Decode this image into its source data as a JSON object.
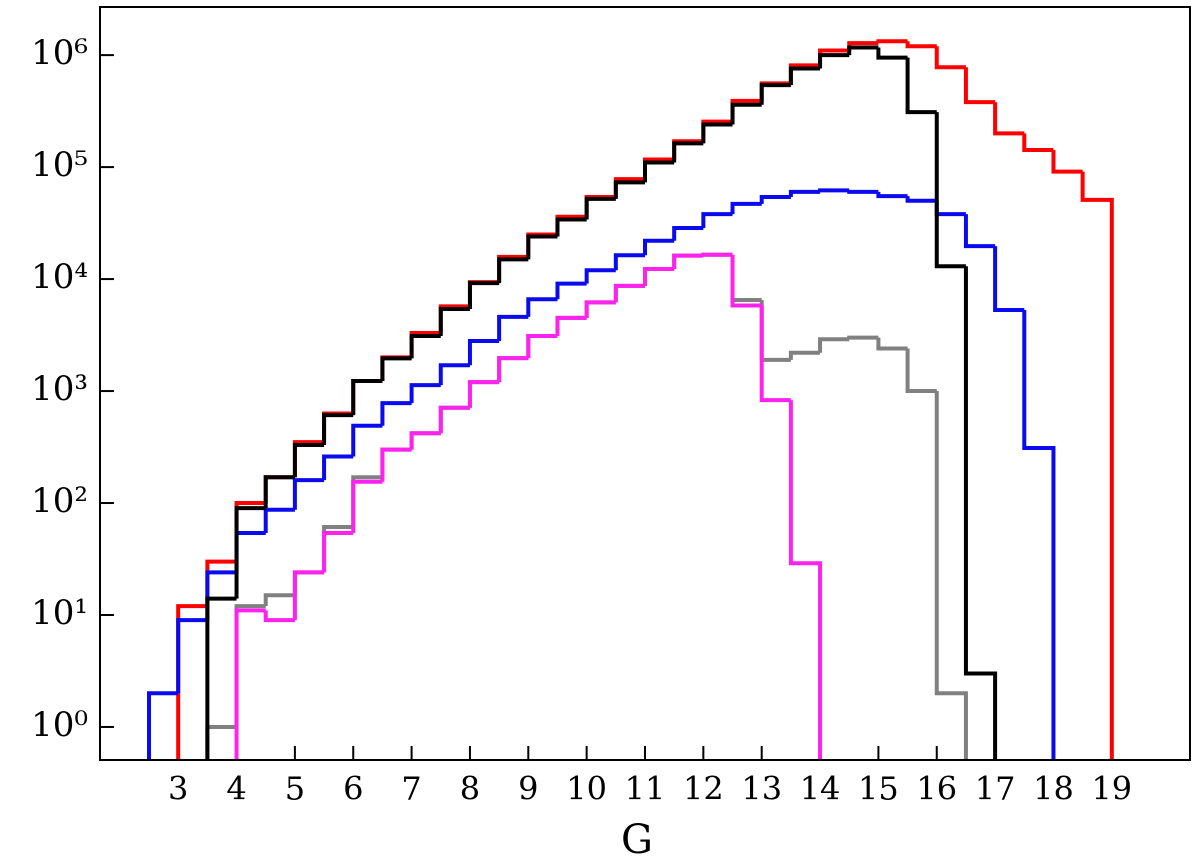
{
  "chart_data": {
    "type": "histogram",
    "xlabel": "G",
    "yscale": "log",
    "xlim": [
      1.66,
      20.34
    ],
    "ylim": [
      0.507,
      2690000
    ],
    "xticks": [
      3,
      4,
      5,
      6,
      7,
      8,
      9,
      10,
      11,
      12,
      13,
      14,
      15,
      16,
      17,
      18,
      19
    ],
    "yticks": [
      {
        "value": 1,
        "label": "10⁰"
      },
      {
        "value": 10,
        "label": "10¹"
      },
      {
        "value": 100,
        "label": "10²"
      },
      {
        "value": 1000,
        "label": "10³"
      },
      {
        "value": 10000,
        "label": "10⁴"
      },
      {
        "value": 100000,
        "label": "10⁵"
      },
      {
        "value": 1000000,
        "label": "10⁶"
      }
    ],
    "series": [
      {
        "color": "#ff0000",
        "bins": [
          3,
          3.5,
          4,
          4.5,
          5,
          5.5,
          6,
          6.5,
          7,
          7.5,
          8,
          8.5,
          9,
          9.5,
          10,
          10.5,
          11,
          11.5,
          12,
          12.5,
          13,
          13.5,
          14,
          14.5,
          15,
          15.5,
          16,
          16.5,
          17,
          17.5,
          18,
          18.5,
          19
        ],
        "values": [
          12,
          30,
          100,
          170,
          350,
          630,
          1230,
          2000,
          3300,
          5700,
          9400,
          15800,
          25000,
          36000,
          54000,
          78000,
          117000,
          170000,
          255000,
          390000,
          560000,
          810000,
          1100000,
          1280000,
          1330000,
          1200000,
          780000,
          380000,
          200000,
          142000,
          91000,
          51000
        ]
      },
      {
        "color": "#0a0aee",
        "bins": [
          2.5,
          3,
          3.5,
          4,
          4.5,
          5,
          5.5,
          6,
          6.5,
          7,
          7.5,
          8,
          8.5,
          9,
          9.5,
          10,
          10.5,
          11,
          11.5,
          12,
          12.5,
          13,
          13.5,
          14,
          14.5,
          15,
          15.5,
          16,
          16.5,
          17,
          17.5,
          18
        ],
        "values": [
          2,
          9,
          24,
          54,
          87,
          160,
          260,
          490,
          780,
          1130,
          1700,
          2800,
          4600,
          6600,
          9100,
          12000,
          16300,
          22000,
          28600,
          38000,
          47000,
          54000,
          60000,
          62000,
          60000,
          55000,
          50000,
          38000,
          19700,
          5300,
          310
        ]
      },
      {
        "color": "#808080",
        "bins": [
          3.5,
          4,
          4.5,
          5,
          5.5,
          6,
          6.5,
          7,
          7.5,
          8,
          8.5,
          9,
          9.5,
          10,
          10.5,
          11,
          11.5,
          12,
          12.5,
          13,
          13.5,
          14,
          14.5,
          15,
          15.5,
          16,
          16.5
        ],
        "values": [
          1,
          12,
          15,
          24,
          61,
          170,
          300,
          420,
          710,
          1200,
          1970,
          3100,
          4500,
          6200,
          8700,
          12300,
          16200,
          16500,
          6500,
          1900,
          2200,
          2900,
          3000,
          2400,
          1000,
          2
        ]
      },
      {
        "color": "#ff22ee",
        "bins": [
          4,
          4.5,
          5,
          5.5,
          6,
          6.5,
          7,
          7.5,
          8,
          8.5,
          9,
          9.5,
          10,
          10.5,
          11,
          11.5,
          12,
          12.5,
          13,
          13.5,
          14
        ],
        "values": [
          11,
          9,
          24,
          54,
          155,
          300,
          420,
          710,
          1200,
          1970,
          3100,
          4500,
          6200,
          8700,
          12300,
          16200,
          16500,
          5800,
          830,
          29
        ]
      },
      {
        "color": "#000000",
        "bins": [
          3.5,
          4,
          4.5,
          5,
          5.5,
          6,
          6.5,
          7,
          7.5,
          8,
          8.5,
          9,
          9.5,
          10,
          10.5,
          11,
          11.5,
          12,
          12.5,
          13,
          13.5,
          14,
          14.5,
          15,
          15.5,
          16,
          16.5,
          17
        ],
        "values": [
          14,
          90,
          170,
          330,
          610,
          1230,
          1960,
          3100,
          5400,
          9200,
          15000,
          24000,
          34000,
          52000,
          73000,
          110000,
          163000,
          240000,
          360000,
          540000,
          760000,
          1000000,
          1170000,
          950000,
          310000,
          13000,
          3
        ]
      }
    ]
  }
}
